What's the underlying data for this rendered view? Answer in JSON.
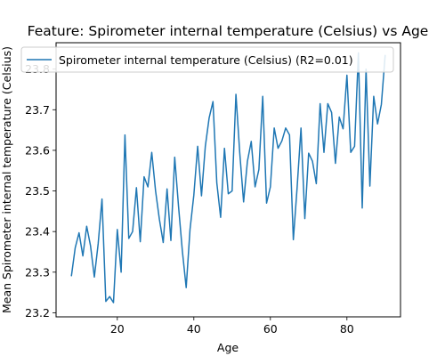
{
  "chart_data": {
    "type": "line",
    "title": "Feature: Spirometer internal temperature (Celsius) vs Age",
    "xlabel": "Age",
    "ylabel": "Mean Spirometer internal temperature (Celsius)",
    "xlim": [
      4,
      94
    ],
    "ylim": [
      23.19,
      23.865
    ],
    "x_ticks": [
      20,
      40,
      60,
      80
    ],
    "y_ticks": [
      23.2,
      23.3,
      23.4,
      23.5,
      23.6,
      23.7,
      23.8
    ],
    "grid": false,
    "legend_position": "top",
    "color": "#1f77b4",
    "series": [
      {
        "name": "Spirometer internal temperature (Celsius) (R2=0.01)",
        "x": [
          8,
          9,
          10,
          11,
          12,
          13,
          14,
          15,
          16,
          17,
          18,
          19,
          20,
          21,
          22,
          23,
          24,
          25,
          26,
          27,
          28,
          29,
          30,
          31,
          32,
          33,
          34,
          35,
          36,
          37,
          38,
          39,
          40,
          41,
          42,
          43,
          44,
          45,
          46,
          47,
          48,
          49,
          50,
          51,
          52,
          53,
          54,
          55,
          56,
          57,
          58,
          59,
          60,
          61,
          62,
          63,
          64,
          65,
          66,
          67,
          68,
          69,
          70,
          71,
          72,
          73,
          74,
          75,
          76,
          77,
          78,
          79,
          80,
          81,
          82,
          83,
          84,
          85,
          86,
          87,
          88,
          89,
          90
        ],
        "values": [
          23.29,
          23.36,
          23.397,
          23.34,
          23.413,
          23.365,
          23.288,
          23.37,
          23.48,
          23.228,
          23.24,
          23.225,
          23.405,
          23.3,
          23.638,
          23.383,
          23.4,
          23.508,
          23.375,
          23.535,
          23.51,
          23.595,
          23.5,
          23.43,
          23.373,
          23.505,
          23.378,
          23.583,
          23.462,
          23.352,
          23.262,
          23.405,
          23.49,
          23.61,
          23.488,
          23.61,
          23.68,
          23.72,
          23.52,
          23.435,
          23.605,
          23.493,
          23.5,
          23.738,
          23.593,
          23.473,
          23.573,
          23.622,
          23.51,
          23.553,
          23.733,
          23.47,
          23.51,
          23.655,
          23.605,
          23.623,
          23.655,
          23.638,
          23.38,
          23.51,
          23.655,
          23.432,
          23.593,
          23.573,
          23.518,
          23.715,
          23.595,
          23.715,
          23.693,
          23.568,
          23.682,
          23.653,
          23.785,
          23.595,
          23.61,
          23.84,
          23.458,
          23.8,
          23.512,
          23.733,
          23.665,
          23.713,
          23.835
        ]
      }
    ]
  }
}
